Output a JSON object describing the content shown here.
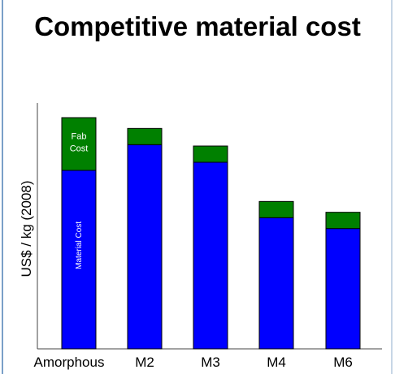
{
  "chart_data": {
    "type": "bar",
    "stacked": true,
    "title": "Competitive material cost",
    "xlabel": "",
    "ylabel": "US$ / kg  (2008)",
    "categories": [
      "Amorphous",
      "M2",
      "M3",
      "M4",
      "M6"
    ],
    "series": [
      {
        "name": "Material Cost",
        "color": "#0000ff",
        "values": [
          6.6,
          7.55,
          6.9,
          4.85,
          4.45
        ]
      },
      {
        "name": "Fab Cost",
        "color": "#008000",
        "values": [
          1.95,
          0.6,
          0.6,
          0.6,
          0.6
        ]
      }
    ],
    "ylim": [
      0,
      9.0
    ],
    "grid": false,
    "legend": "none",
    "annotations": {
      "fab_label": [
        "Fab",
        "Cost"
      ],
      "material_label": "Material Cost"
    }
  }
}
